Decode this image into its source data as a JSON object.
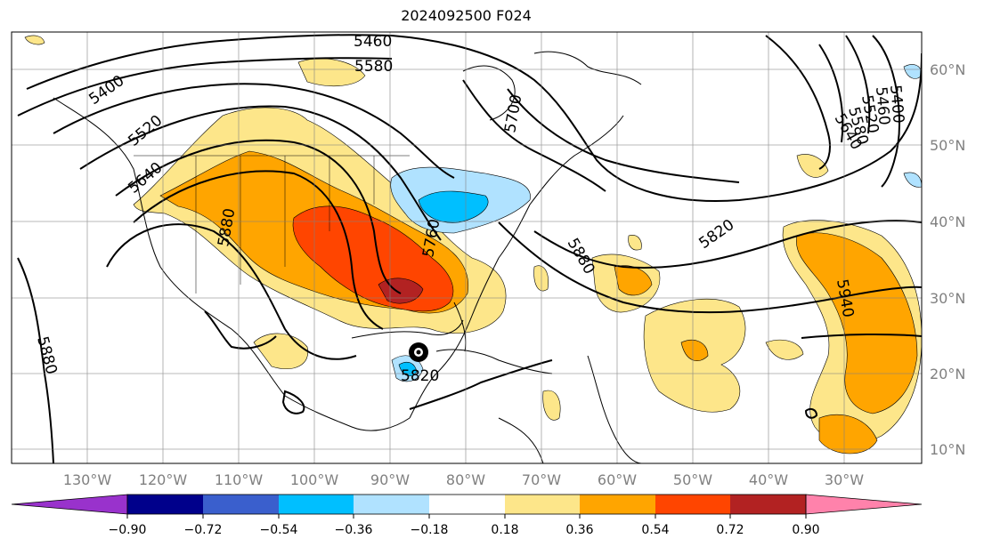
{
  "title": "2024092500 F024",
  "map": {
    "lon_labels": [
      "130°W",
      "120°W",
      "110°W",
      "100°W",
      "90°W",
      "80°W",
      "70°W",
      "60°W",
      "50°W",
      "40°W",
      "30°W"
    ],
    "lat_labels": [
      "60°N",
      "50°N",
      "40°N",
      "30°N",
      "20°N",
      "10°N"
    ],
    "contour_labels": [
      "5460",
      "5580",
      "5400",
      "5520",
      "5640",
      "5700",
      "5880",
      "5760",
      "5820",
      "5880",
      "5940",
      "5880",
      "5820",
      "5640",
      "5580",
      "5520",
      "5460",
      "5400"
    ]
  },
  "colorbar": {
    "ticks": [
      "−0.90",
      "−0.72",
      "−0.54",
      "−0.36",
      "−0.18",
      "0.18",
      "0.36",
      "0.54",
      "0.72",
      "0.90"
    ],
    "colors": [
      "#9932cc",
      "#00008b",
      "#3a5fcd",
      "#00bfff",
      "#b0e2ff",
      "#ffffff",
      "#fde68a",
      "#ffa500",
      "#ff4500",
      "#b22222",
      "#ff82ab"
    ]
  }
}
